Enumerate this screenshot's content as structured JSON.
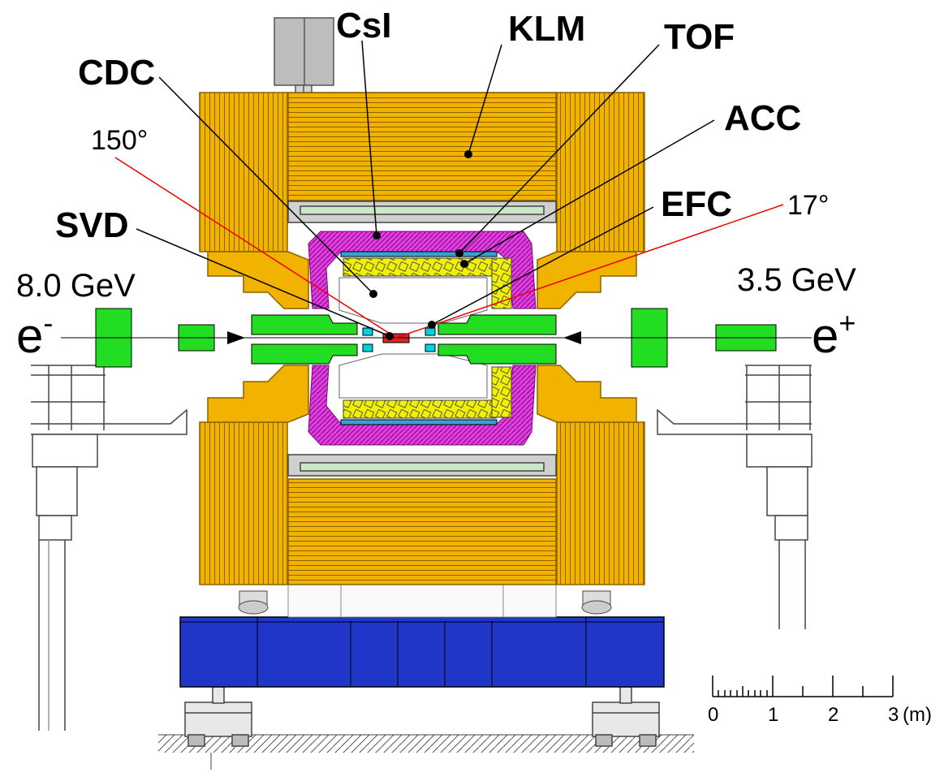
{
  "labels": {
    "csi": "CsI",
    "klm": "KLM",
    "tof": "TOF",
    "cdc": "CDC",
    "acc": "ACC",
    "efc": "EFC",
    "svd": "SVD",
    "angle_150": "150°",
    "angle_17": "17°",
    "beam_left_energy": "8.0 GeV",
    "beam_right_energy": "3.5 GeV",
    "electron_base": "e",
    "electron_sup": "-",
    "positron_base": "e",
    "positron_sup": "+"
  },
  "scale_bar": {
    "ticks": [
      "0",
      "1",
      "2",
      "3"
    ],
    "unit": "(m)"
  },
  "colors": {
    "klm_iron": "#f2b200",
    "klm_line": "#8a6200",
    "csi": "#e040e0",
    "acc": "#f0f000",
    "tof": "#3aa0d0",
    "beamline": "#22dd22",
    "ir": "#dd2222",
    "support": "#1f36c8",
    "magnet": "#c0c0c0",
    "angle_line": "#ee0000"
  }
}
